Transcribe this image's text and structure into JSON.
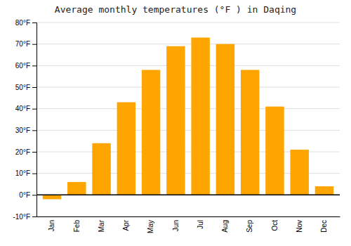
{
  "chart_data": {
    "type": "bar",
    "title": "Average monthly temperatures (°F ) in Daqing",
    "categories": [
      "Jan",
      "Feb",
      "Mar",
      "Apr",
      "May",
      "Jun",
      "Jul",
      "Aug",
      "Sep",
      "Oct",
      "Nov",
      "Dec"
    ],
    "values": [
      -2,
      6,
      24,
      43,
      58,
      69,
      73,
      70,
      58,
      41,
      21,
      4
    ],
    "color": "#FFA500",
    "ylim": [
      -10,
      80
    ],
    "yticks": [
      {
        "value": -10,
        "label": "-10°F"
      },
      {
        "value": 0,
        "label": "0°F"
      },
      {
        "value": 10,
        "label": "10°F"
      },
      {
        "value": 20,
        "label": "20°F"
      },
      {
        "value": 30,
        "label": "30°F"
      },
      {
        "value": 40,
        "label": "40°F"
      },
      {
        "value": 50,
        "label": "50°F"
      },
      {
        "value": 60,
        "label": "60°F"
      },
      {
        "value": 70,
        "label": "70°F"
      },
      {
        "value": 80,
        "label": "80°F"
      }
    ],
    "grid": true
  }
}
